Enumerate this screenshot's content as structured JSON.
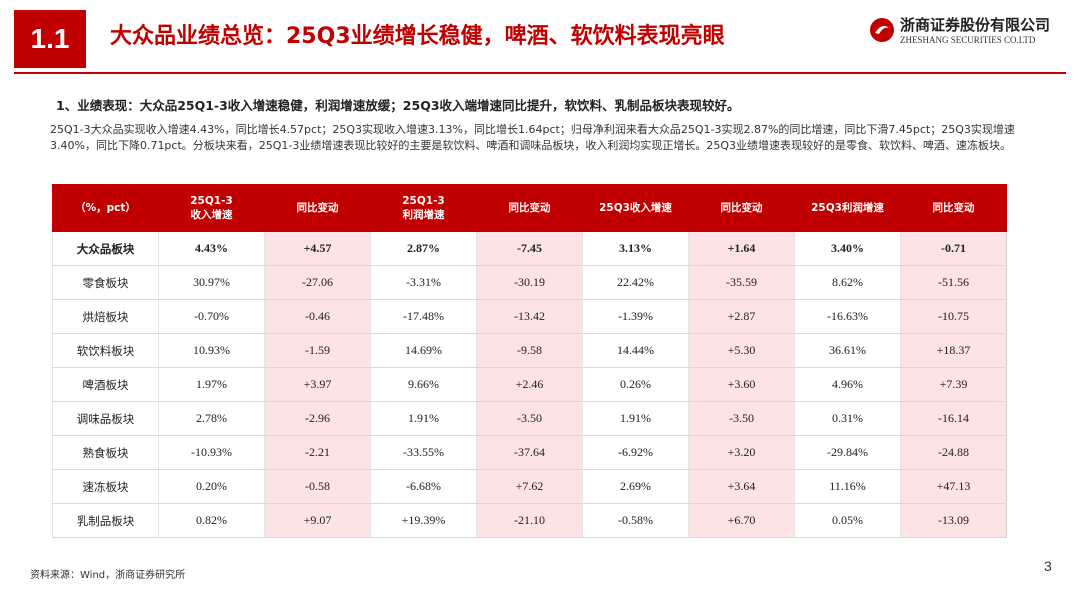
{
  "header": {
    "section": "1.1",
    "title": "大众品业绩总览：25Q3业绩增长稳健，啤酒、软饮料表现亮眼",
    "logo_cn": "浙商证券股份有限公司",
    "logo_en": "ZHESHANG SECURITIES CO.LTD"
  },
  "subtitle": "1、业绩表现：大众品25Q1-3收入增速稳健，利润增速放缓；25Q3收入端增速同比提升，软饮料、乳制品板块表现较好。",
  "paragraph": "25Q1-3大众品实现收入增速4.43%，同比增长4.57pct；25Q3实现收入增速3.13%，同比增长1.64pct；归母净利润来看大众品25Q1-3实现2.87%的同比增速，同比下滑7.45pct；25Q3实现增速3.40%，同比下降0.71pct。分板块来看，25Q1-3业绩增速表现比较好的主要是软饮料、啤酒和调味品板块，收入利润均实现正增长。25Q3业绩增速表现较好的是零食、软饮料、啤酒、速冻板块。",
  "table": {
    "columns": [
      [
        "（%，pct）"
      ],
      [
        "25Q1-3",
        "收入增速"
      ],
      [
        "同比变动"
      ],
      [
        "25Q1-3",
        "利润增速"
      ],
      [
        "同比变动"
      ],
      [
        "25Q3收入增速"
      ],
      [
        "同比变动"
      ],
      [
        "25Q3利润增速"
      ],
      [
        "同比变动"
      ]
    ],
    "rows": [
      [
        "大众品板块",
        "4.43%",
        "+4.57",
        "2.87%",
        "-7.45",
        "3.13%",
        "+1.64",
        "3.40%",
        "-0.71"
      ],
      [
        "零食板块",
        "30.97%",
        "-27.06",
        "-3.31%",
        "-30.19",
        "22.42%",
        "-35.59",
        "8.62%",
        "-51.56"
      ],
      [
        "烘焙板块",
        "-0.70%",
        "-0.46",
        "-17.48%",
        "-13.42",
        "-1.39%",
        "+2.87",
        "-16.63%",
        "-10.75"
      ],
      [
        "软饮料板块",
        "10.93%",
        "-1.59",
        "14.69%",
        "-9.58",
        "14.44%",
        "+5.30",
        "36.61%",
        "+18.37"
      ],
      [
        "啤酒板块",
        "1.97%",
        "+3.97",
        "9.66%",
        "+2.46",
        "0.26%",
        "+3.60",
        "4.96%",
        "+7.39"
      ],
      [
        "调味品板块",
        "2.78%",
        "-2.96",
        "1.91%",
        "-3.50",
        "1.91%",
        "-3.50",
        "0.31%",
        "-16.14"
      ],
      [
        "熟食板块",
        "-10.93%",
        "-2.21",
        "-33.55%",
        "-37.64",
        "-6.92%",
        "+3.20",
        "-29.84%",
        "-24.88"
      ],
      [
        "速冻板块",
        "0.20%",
        "-0.58",
        "-6.68%",
        "+7.62",
        "2.69%",
        "+3.64",
        "11.16%",
        "+47.13"
      ],
      [
        "乳制品板块",
        "0.82%",
        "+9.07",
        "+19.39%",
        "-21.10",
        "-0.58%",
        "+6.70",
        "0.05%",
        "-13.09"
      ]
    ]
  },
  "footer": {
    "source": "资料来源：Wind，浙商证券研究所",
    "page": "3"
  }
}
